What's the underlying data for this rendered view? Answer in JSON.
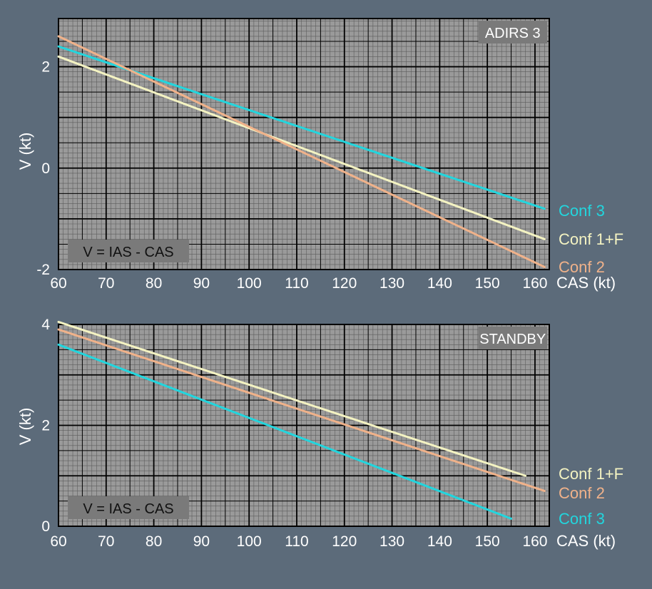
{
  "colors": {
    "background": "#5c6b7a",
    "plot_bg": "#9a9a9a",
    "grid_major": "#000000",
    "grid_minor": "#2b2b2b",
    "text": "#ffffff",
    "conf3": "#22d6de",
    "conf1f": "#f4f3c2",
    "conf2": "#f0b28a",
    "label_box": "#7a7a7a"
  },
  "chart_data": [
    {
      "type": "line",
      "title": "ADIRS 3",
      "annotation": "V = IAS - CAS",
      "xlabel": "CAS (kt)",
      "ylabel": "V (kt)",
      "xlim": [
        60,
        163
      ],
      "ylim": [
        -2,
        2.95
      ],
      "x_ticks": [
        60,
        70,
        80,
        90,
        100,
        110,
        120,
        130,
        140,
        150,
        160
      ],
      "y_ticks": [
        -2,
        0,
        2
      ],
      "grid": true,
      "legend": "right",
      "series": [
        {
          "name": "Conf 3",
          "color_key": "conf3",
          "x": [
            60,
            162
          ],
          "y": [
            2.4,
            -0.8
          ]
        },
        {
          "name": "Conf 1+F",
          "color_key": "conf1f",
          "x": [
            60,
            162
          ],
          "y": [
            2.2,
            -1.4
          ]
        },
        {
          "name": "Conf 2",
          "color_key": "conf2",
          "x": [
            60,
            162
          ],
          "y": [
            2.6,
            -1.95
          ]
        }
      ]
    },
    {
      "type": "line",
      "title": "STANDBY",
      "annotation": "V = IAS - CAS",
      "xlabel": "CAS (kt)",
      "ylabel": "V (kt)",
      "xlim": [
        60,
        163
      ],
      "ylim": [
        0,
        4
      ],
      "x_ticks": [
        60,
        70,
        80,
        90,
        100,
        110,
        120,
        130,
        140,
        150,
        160
      ],
      "y_ticks": [
        0,
        2,
        4
      ],
      "grid": true,
      "legend": "right",
      "series": [
        {
          "name": "Conf 1+F",
          "color_key": "conf1f",
          "x": [
            60,
            158
          ],
          "y": [
            4.05,
            1.0
          ]
        },
        {
          "name": "Conf 2",
          "color_key": "conf2",
          "x": [
            60,
            162
          ],
          "y": [
            3.9,
            0.7
          ]
        },
        {
          "name": "Conf 3",
          "color_key": "conf3",
          "x": [
            60,
            155
          ],
          "y": [
            3.6,
            0.15
          ]
        }
      ]
    }
  ]
}
